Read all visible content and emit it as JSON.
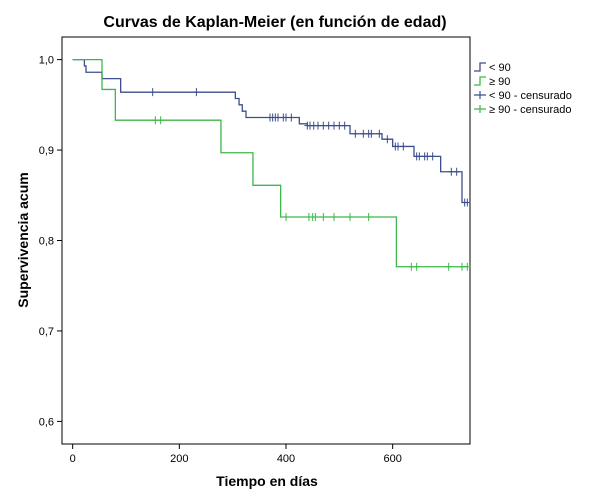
{
  "colors": {
    "under90": "#3b4f8c",
    "over90": "#3cb84a",
    "axis": "#000000",
    "frame": "#000000"
  },
  "chart_data": {
    "type": "line",
    "title": "Curvas de Kaplan-Meier (en función de edad)",
    "xlabel": "Tiempo en días",
    "ylabel": "Supervivencia acum",
    "xlim": [
      -20,
      745
    ],
    "ylim": [
      0.575,
      1.025
    ],
    "xticks": [
      0,
      200,
      400,
      600
    ],
    "xtick_labels": [
      "0",
      "200",
      "400",
      "600"
    ],
    "yticks": [
      0.6,
      0.7,
      0.8,
      0.9,
      1.0
    ],
    "ytick_labels": [
      "0,6",
      "0,7",
      "0,8",
      "0,9",
      "1,0"
    ],
    "grid": false,
    "legend_position": "right",
    "legend": [
      "< 90",
      "≥ 90",
      "< 90 - censurado",
      "≥ 90 - censurado"
    ],
    "series": [
      {
        "name": "< 90",
        "color_key": "under90",
        "steps": [
          [
            0,
            1.0
          ],
          [
            22,
            0.993
          ],
          [
            25,
            0.986
          ],
          [
            55,
            0.979
          ],
          [
            55,
            0.979
          ],
          [
            90,
            0.964
          ],
          [
            305,
            0.957
          ],
          [
            312,
            0.95
          ],
          [
            318,
            0.943
          ],
          [
            325,
            0.936
          ],
          [
            425,
            0.929
          ],
          [
            440,
            0.927
          ],
          [
            520,
            0.918
          ],
          [
            580,
            0.912
          ],
          [
            600,
            0.904
          ],
          [
            640,
            0.893
          ],
          [
            690,
            0.876
          ],
          [
            730,
            0.842
          ]
        ],
        "end_x": 740,
        "censored": [
          [
            150,
            0.964
          ],
          [
            232,
            0.964
          ],
          [
            370,
            0.936
          ],
          [
            375,
            0.936
          ],
          [
            380,
            0.936
          ],
          [
            385,
            0.936
          ],
          [
            395,
            0.936
          ],
          [
            400,
            0.936
          ],
          [
            410,
            0.936
          ],
          [
            440,
            0.927
          ],
          [
            445,
            0.927
          ],
          [
            452,
            0.927
          ],
          [
            460,
            0.927
          ],
          [
            470,
            0.927
          ],
          [
            480,
            0.927
          ],
          [
            490,
            0.927
          ],
          [
            500,
            0.927
          ],
          [
            510,
            0.927
          ],
          [
            530,
            0.918
          ],
          [
            545,
            0.918
          ],
          [
            555,
            0.918
          ],
          [
            560,
            0.918
          ],
          [
            575,
            0.918
          ],
          [
            590,
            0.912
          ],
          [
            605,
            0.904
          ],
          [
            610,
            0.904
          ],
          [
            620,
            0.904
          ],
          [
            645,
            0.893
          ],
          [
            650,
            0.893
          ],
          [
            660,
            0.893
          ],
          [
            665,
            0.893
          ],
          [
            675,
            0.893
          ],
          [
            710,
            0.876
          ],
          [
            720,
            0.876
          ],
          [
            735,
            0.842
          ],
          [
            740,
            0.842
          ]
        ]
      },
      {
        "name": "≥ 90",
        "color_key": "over90",
        "steps": [
          [
            0,
            1.0
          ],
          [
            55,
            0.967
          ],
          [
            80,
            0.933
          ],
          [
            278,
            0.897
          ],
          [
            338,
            0.861
          ],
          [
            390,
            0.826
          ],
          [
            607,
            0.771
          ]
        ],
        "end_x": 740,
        "censored": [
          [
            155,
            0.933
          ],
          [
            165,
            0.933
          ],
          [
            400,
            0.826
          ],
          [
            443,
            0.826
          ],
          [
            450,
            0.826
          ],
          [
            455,
            0.826
          ],
          [
            470,
            0.826
          ],
          [
            490,
            0.826
          ],
          [
            520,
            0.826
          ],
          [
            555,
            0.826
          ],
          [
            635,
            0.771
          ],
          [
            645,
            0.771
          ],
          [
            705,
            0.771
          ],
          [
            730,
            0.771
          ],
          [
            740,
            0.771
          ]
        ]
      }
    ]
  }
}
